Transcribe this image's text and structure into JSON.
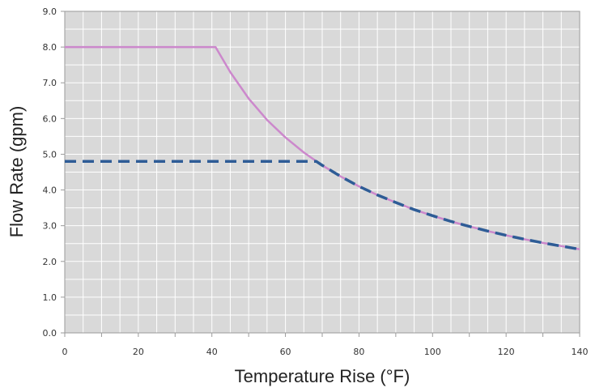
{
  "chart_data": {
    "type": "line",
    "title": "",
    "xlabel": "Temperature Rise (°F)",
    "ylabel": "Flow Rate  (gpm)",
    "xlim": [
      0,
      140
    ],
    "ylim": [
      0,
      9
    ],
    "x_ticks": [
      "0",
      "20",
      "40",
      "60",
      "80",
      "100",
      "120",
      "140"
    ],
    "y_ticks": [
      "0.0",
      "1.0",
      "2.0",
      "3.0",
      "4.0",
      "5.0",
      "6.0",
      "7.0",
      "8.0",
      "9.0"
    ],
    "grid": true,
    "legend": "none",
    "background_color": "#d9d9d9",
    "series": [
      {
        "style": "solid",
        "color": "#cc88cc",
        "x": [
          0,
          41,
          45,
          50,
          55,
          60,
          65,
          70,
          75,
          80,
          85,
          90,
          95,
          100,
          105,
          110,
          115,
          120,
          125,
          130,
          135,
          140
        ],
        "y": [
          8.0,
          8.0,
          7.3,
          6.56,
          5.96,
          5.47,
          5.05,
          4.69,
          4.38,
          4.1,
          3.86,
          3.65,
          3.45,
          3.28,
          3.12,
          2.98,
          2.85,
          2.73,
          2.62,
          2.52,
          2.43,
          2.34
        ]
      },
      {
        "style": "dashed",
        "color": "#2e5c96",
        "x": [
          0,
          68.4,
          70,
          75,
          80,
          85,
          90,
          95,
          100,
          105,
          110,
          115,
          120,
          125,
          130,
          135,
          140
        ],
        "y": [
          4.8,
          4.8,
          4.69,
          4.38,
          4.1,
          3.86,
          3.65,
          3.45,
          3.28,
          3.12,
          2.98,
          2.85,
          2.73,
          2.62,
          2.52,
          2.43,
          2.34
        ]
      }
    ]
  }
}
